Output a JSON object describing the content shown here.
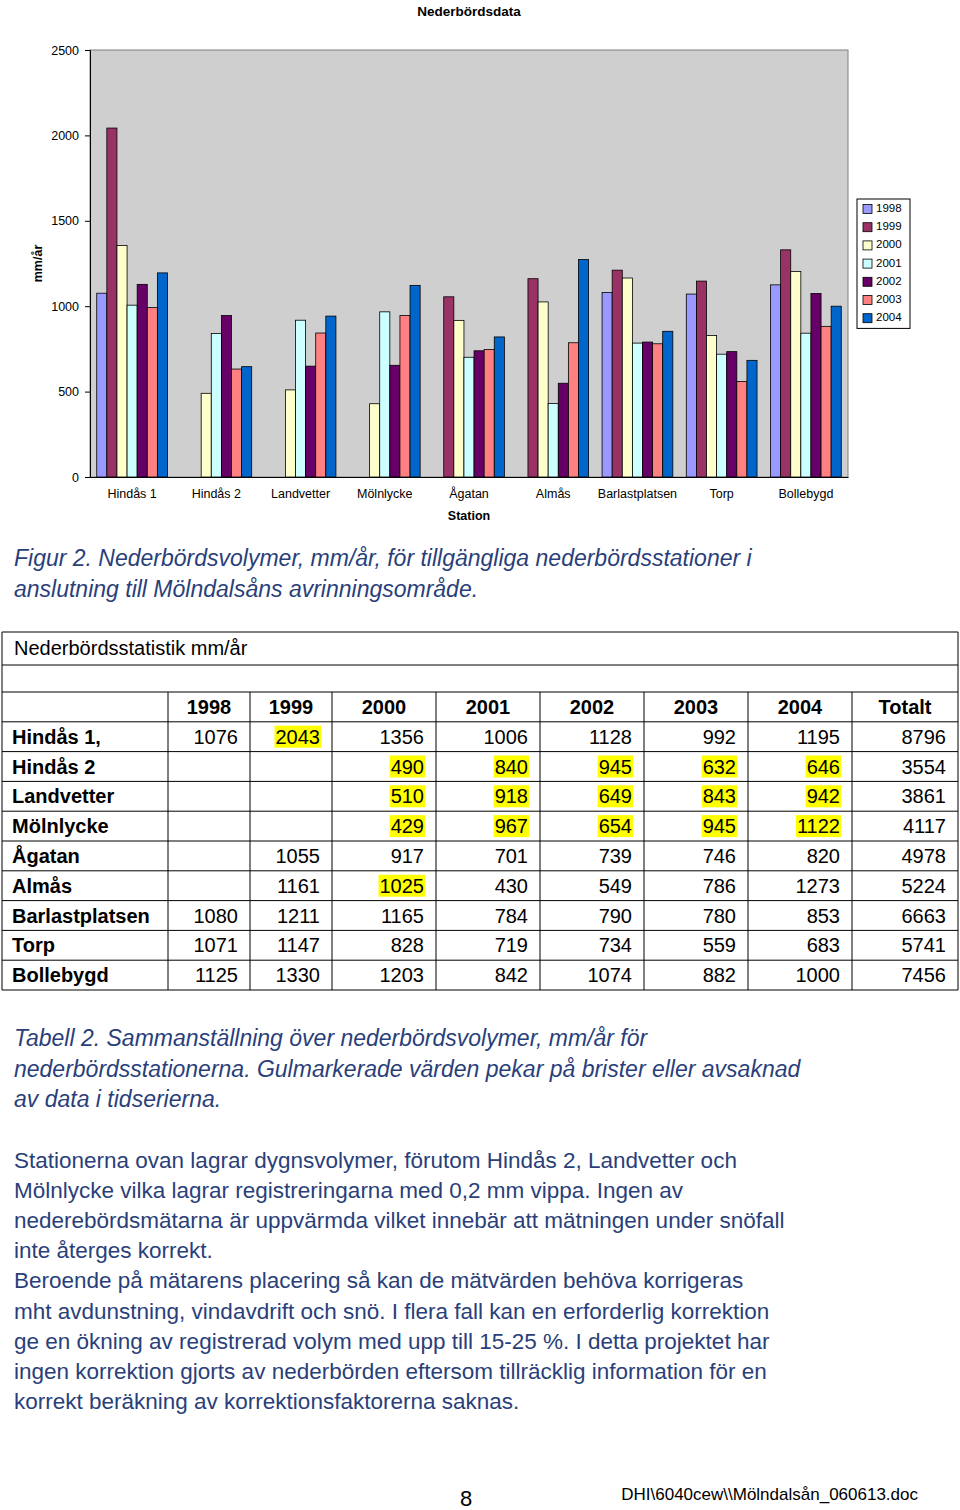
{
  "chart_data": {
    "type": "bar",
    "title": "Nederbördsdata",
    "x_label": "Station",
    "y_label": "mm/år",
    "categories": [
      "Hindås 1",
      "Hindås 2",
      "Landvetter",
      "Mölnlycke",
      "Ågatan",
      "Almås",
      "Barlastplatsen",
      "Torp",
      "Bollebygd"
    ],
    "series": [
      {
        "name": "1998",
        "color": "#9999FF",
        "values": [
          1076,
          null,
          null,
          null,
          null,
          null,
          1080,
          1071,
          1125
        ]
      },
      {
        "name": "1999",
        "color": "#993366",
        "values": [
          2043,
          null,
          null,
          null,
          1055,
          1161,
          1211,
          1147,
          1330
        ]
      },
      {
        "name": "2000",
        "color": "#FFFFCC",
        "values": [
          1356,
          490,
          510,
          429,
          917,
          1025,
          1165,
          828,
          1203
        ]
      },
      {
        "name": "2001",
        "color": "#CCFFFF",
        "values": [
          1006,
          840,
          918,
          967,
          701,
          430,
          784,
          719,
          842
        ]
      },
      {
        "name": "2002",
        "color": "#660066",
        "values": [
          1128,
          945,
          649,
          654,
          739,
          549,
          790,
          734,
          1074
        ]
      },
      {
        "name": "2003",
        "color": "#FF8080",
        "values": [
          992,
          632,
          843,
          945,
          746,
          786,
          780,
          559,
          882
        ]
      },
      {
        "name": "2004",
        "color": "#0066CC",
        "values": [
          1195,
          646,
          942,
          1122,
          820,
          1273,
          853,
          683,
          1000
        ]
      }
    ],
    "ylim": [
      0,
      2500
    ],
    "yticks": [
      0,
      500,
      1000,
      1500,
      2000,
      2500
    ],
    "grid": false,
    "legend": "right"
  },
  "figure_caption": [
    "Figur 2. Nederbördsvolymer, mm/år, för tillgängliga nederbördsstationer i",
    "anslutning till Mölndalsåns avrinningsområde."
  ],
  "table": {
    "title": "Nederbördsstatistik mm/år",
    "columns": [
      "1998",
      "1999",
      "2000",
      "2001",
      "2002",
      "2003",
      "2004",
      "Totalt"
    ],
    "rows": [
      {
        "station": "Hindås 1,",
        "cells": [
          "1076",
          "2043",
          "1356",
          "1006",
          "1128",
          "992",
          "1195",
          "8796"
        ],
        "marked": [
          false,
          true,
          false,
          false,
          false,
          false,
          false,
          false
        ]
      },
      {
        "station": "Hindås 2",
        "cells": [
          null,
          null,
          "490",
          "840",
          "945",
          "632",
          "646",
          "3554"
        ],
        "marked": [
          false,
          false,
          true,
          true,
          true,
          true,
          true,
          false
        ]
      },
      {
        "station": "Landvetter",
        "cells": [
          null,
          null,
          "510",
          "918",
          "649",
          "843",
          "942",
          "3861"
        ],
        "marked": [
          false,
          false,
          true,
          true,
          true,
          true,
          true,
          false
        ]
      },
      {
        "station": "Mölnlycke",
        "cells": [
          null,
          null,
          "429",
          "967",
          "654",
          "945",
          "1122",
          "4117"
        ],
        "marked": [
          false,
          false,
          true,
          true,
          true,
          true,
          true,
          false
        ]
      },
      {
        "station": "Ågatan",
        "cells": [
          null,
          "1055",
          "917",
          "701",
          "739",
          "746",
          "820",
          "4978"
        ],
        "marked": [
          false,
          false,
          false,
          false,
          false,
          false,
          false,
          false
        ]
      },
      {
        "station": "Almås",
        "cells": [
          null,
          "1161",
          "1025",
          "430",
          "549",
          "786",
          "1273",
          "5224"
        ],
        "marked": [
          false,
          false,
          true,
          false,
          false,
          false,
          false,
          false
        ]
      },
      {
        "station": "Barlastplatsen",
        "cells": [
          "1080",
          "1211",
          "1165",
          "784",
          "790",
          "780",
          "853",
          "6663"
        ],
        "marked": [
          false,
          false,
          false,
          false,
          false,
          false,
          false,
          false
        ]
      },
      {
        "station": "Torp",
        "cells": [
          "1071",
          "1147",
          "828",
          "719",
          "734",
          "559",
          "683",
          "5741"
        ],
        "marked": [
          false,
          false,
          false,
          false,
          false,
          false,
          false,
          false
        ]
      },
      {
        "station": "Bollebygd",
        "cells": [
          "1125",
          "1330",
          "1203",
          "842",
          "1074",
          "882",
          "1000",
          "7456"
        ],
        "marked": [
          false,
          false,
          false,
          false,
          false,
          false,
          false,
          false
        ]
      }
    ]
  },
  "table_caption": [
    "Tabell 2. Sammanställning över nederbördsvolymer, mm/år för",
    "nederbördsstationerna. Gulmarkerade värden pekar på brister eller avsaknad",
    "av data i tidserierna."
  ],
  "body": [
    "Stationerna ovan lagrar dygnsvolymer, förutom Hindås 2, Landvetter och",
    "Mölnlycke vilka lagrar registreringarna med 0,2 mm vippa. Ingen av",
    "nederebördsmätarna är uppvärmda vilket innebär att mätningen under snöfall",
    "inte återges korrekt.",
    "Beroende på mätarens placering så kan de mätvärden behöva korrigeras",
    "mht avdunstning, vindavdrift och snö. I flera fall kan en erforderlig korrektion",
    "ge en ökning av registrerad volym med upp till 15-25 %. I detta projektet har",
    "ingen korrektion gjorts av nederbörden eftersom tillräcklig information för en",
    "korrekt beräkning av korrektionsfaktorerna saknas."
  ],
  "footer": {
    "page": "8",
    "file": "DHI\\6040cew\\\\Mölndalsån_060613.doc"
  }
}
